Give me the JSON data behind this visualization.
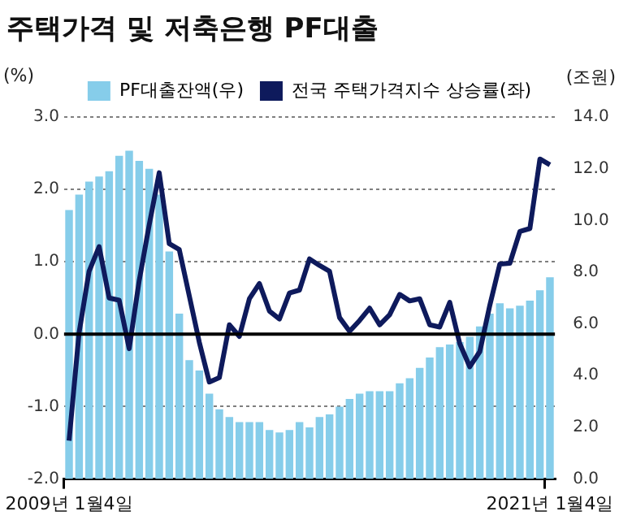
{
  "chart_data": {
    "type": "bar",
    "title": "주택가격 및 저축은행 PF대출",
    "ylabel": "(%)",
    "y2label": "(조원)",
    "categories": [
      "2009년 1월4일",
      null,
      null,
      null,
      null,
      null,
      null,
      null,
      null,
      null,
      null,
      null,
      null,
      null,
      null,
      null,
      null,
      null,
      null,
      null,
      null,
      null,
      null,
      null,
      null,
      null,
      null,
      null,
      null,
      null,
      null,
      null,
      null,
      null,
      null,
      null,
      null,
      null,
      null,
      null,
      null,
      null,
      null,
      null,
      null,
      null,
      null,
      null,
      "2021년 1월4일"
    ],
    "series": [
      {
        "name": "PF대출잔액(우)",
        "axis": "y2",
        "color": "#86cdea",
        "values": [
          10.4,
          11.0,
          11.5,
          11.7,
          11.9,
          12.5,
          12.7,
          12.3,
          12.0,
          11.0,
          8.8,
          6.4,
          4.6,
          4.2,
          3.3,
          2.7,
          2.4,
          2.2,
          2.2,
          2.2,
          1.9,
          1.8,
          1.9,
          2.2,
          2.0,
          2.4,
          2.5,
          2.8,
          3.1,
          3.3,
          3.4,
          3.4,
          3.4,
          3.7,
          3.9,
          4.3,
          4.7,
          5.1,
          5.2,
          5.3,
          5.5,
          5.9,
          6.4,
          6.8,
          6.6,
          6.7,
          6.9,
          7.3,
          7.8
        ]
      },
      {
        "name": "전국 주택가격지수 상승률(좌)",
        "type": "line",
        "axis": "y",
        "color": "#0e1a5c",
        "values": [
          -1.47,
          0.02,
          0.87,
          1.21,
          0.5,
          0.47,
          -0.2,
          0.74,
          1.51,
          2.23,
          1.25,
          1.17,
          0.53,
          -0.11,
          -0.66,
          -0.6,
          0.13,
          -0.03,
          0.49,
          0.7,
          0.32,
          0.21,
          0.57,
          0.61,
          1.04,
          0.95,
          0.87,
          0.23,
          0.04,
          0.19,
          0.36,
          0.13,
          0.27,
          0.55,
          0.46,
          0.49,
          0.13,
          0.1,
          0.44,
          -0.13,
          -0.45,
          -0.24,
          0.4,
          0.97,
          0.98,
          1.42,
          1.46,
          2.42,
          2.34
        ]
      }
    ],
    "ylim": [
      -2,
      3
    ],
    "yticks": [
      {
        "value": -2,
        "label": "-2.0"
      },
      {
        "value": -1,
        "label": "-1.0"
      },
      {
        "value": 0,
        "label": "0.0"
      },
      {
        "value": 1,
        "label": "1.0"
      },
      {
        "value": 2,
        "label": "2.0"
      },
      {
        "value": 3,
        "label": "3.0"
      }
    ],
    "y2lim": [
      0,
      14
    ],
    "y2ticks": [
      {
        "value": 0,
        "label": "0.0"
      },
      {
        "value": 2,
        "label": "2.0"
      },
      {
        "value": 4,
        "label": "4.0"
      },
      {
        "value": 6,
        "label": "6.0"
      },
      {
        "value": 8,
        "label": "8.0"
      },
      {
        "value": 10,
        "label": "10.0"
      },
      {
        "value": 12,
        "label": "12.0"
      },
      {
        "value": 14,
        "label": "14.0"
      }
    ],
    "ref_lines": [
      {
        "axis": "y",
        "value": 0,
        "color": "#000000"
      }
    ],
    "grid": "y",
    "legend": "top",
    "marker": "none",
    "line_style": "solid"
  }
}
